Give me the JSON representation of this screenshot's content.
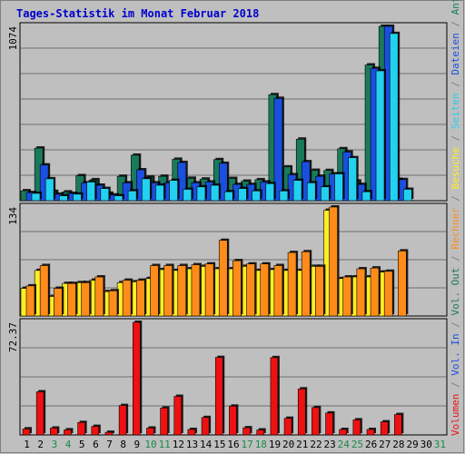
{
  "title": "Tages-Statistik im Monat Februar 2018",
  "colors": {
    "background": "#bfbfbf",
    "frame": "#808080",
    "title": "#0000cc",
    "anfragen": "#1a7a5c",
    "dateien": "#1a4fe0",
    "seiten": "#22d0f0",
    "besuche": "#ffee22",
    "rechner": "#ff8c1a",
    "volumen": "#ee1111",
    "weekend_label": "#1a8a4a"
  },
  "side_labels": [
    {
      "text": "Volumen",
      "color": "#ee1111"
    },
    {
      "text": " / ",
      "color": "#808080"
    },
    {
      "text": "Vol. In",
      "color": "#1a4fe0"
    },
    {
      "text": " / ",
      "color": "#808080"
    },
    {
      "text": "Vol. Out",
      "color": "#1a7a5c"
    },
    {
      "text": " / ",
      "color": "#808080"
    },
    {
      "text": "Rechner",
      "color": "#ff8c1a"
    },
    {
      "text": " / ",
      "color": "#808080"
    },
    {
      "text": "Besuche",
      "color": "#ffee22"
    },
    {
      "text": " / ",
      "color": "#808080"
    },
    {
      "text": "Seiten",
      "color": "#22d0f0"
    },
    {
      "text": " / ",
      "color": "#808080"
    },
    {
      "text": "Dateien",
      "color": "#1a4fe0"
    },
    {
      "text": " / ",
      "color": "#808080"
    },
    {
      "text": "Anfragen",
      "color": "#1a7a5c"
    }
  ],
  "chart_data": [
    {
      "type": "bar",
      "panel": "requests",
      "y_max_label": "1074",
      "ylim": [
        0,
        1074
      ],
      "categories": [
        "1",
        "2",
        "3",
        "4",
        "5",
        "6",
        "7",
        "8",
        "9",
        "10",
        "11",
        "12",
        "13",
        "14",
        "15",
        "16",
        "17",
        "18",
        "19",
        "20",
        "21",
        "22",
        "23",
        "24",
        "25",
        "26",
        "27",
        "28",
        "29",
        "30",
        "31"
      ],
      "weekend_days": [
        "3",
        "4",
        "10",
        "11",
        "17",
        "18",
        "24",
        "25",
        "31"
      ],
      "series": [
        {
          "name": "Anfragen",
          "values": [
            61,
            324,
            57,
            54,
            154,
            129,
            46,
            150,
            280,
            145,
            150,
            255,
            138,
            133,
            253,
            137,
            120,
            129,
            653,
            208,
            379,
            187,
            186,
            320,
            121,
            836,
            1074,
            131,
            0,
            0,
            0
          ]
        },
        {
          "name": "Dateien",
          "values": [
            50,
            220,
            40,
            45,
            110,
            95,
            35,
            110,
            190,
            110,
            110,
            235,
            110,
            115,
            230,
            100,
            100,
            115,
            630,
            160,
            240,
            150,
            165,
            300,
            100,
            815,
            1074,
            130,
            0,
            0,
            0
          ]
        },
        {
          "name": "Seiten",
          "values": [
            45,
            135,
            30,
            40,
            115,
            75,
            30,
            60,
            135,
            95,
            125,
            70,
            85,
            95,
            55,
            75,
            60,
            105,
            60,
            125,
            110,
            85,
            165,
            265,
            55,
            800,
            1030,
            70,
            0,
            0,
            0
          ]
        }
      ]
    },
    {
      "type": "bar",
      "panel": "visits",
      "y_max_label": "134",
      "ylim": [
        0,
        134
      ],
      "categories": [
        "1",
        "2",
        "3",
        "4",
        "5",
        "6",
        "7",
        "8",
        "9",
        "10",
        "11",
        "12",
        "13",
        "14",
        "15",
        "16",
        "17",
        "18",
        "19",
        "20",
        "21",
        "22",
        "23",
        "24",
        "25",
        "26",
        "27",
        "28",
        "29",
        "30",
        "31"
      ],
      "series": [
        {
          "name": "Besuche",
          "values": [
            34,
            56,
            24,
            40,
            41,
            44,
            30,
            41,
            42,
            46,
            57,
            56,
            58,
            61,
            58,
            58,
            61,
            56,
            57,
            56,
            56,
            61,
            130,
            46,
            48,
            48,
            54,
            0,
            0,
            0,
            0
          ]
        },
        {
          "name": "Rechner",
          "values": [
            37,
            62,
            34,
            40,
            41,
            48,
            31,
            44,
            44,
            62,
            62,
            62,
            63,
            64,
            93,
            68,
            64,
            64,
            62,
            78,
            79,
            61,
            134,
            48,
            58,
            59,
            55,
            80,
            0,
            0,
            0
          ]
        }
      ]
    },
    {
      "type": "bar",
      "panel": "volume",
      "y_max_label": "72.37",
      "ylim": [
        0,
        72.37
      ],
      "categories": [
        "1",
        "2",
        "3",
        "4",
        "5",
        "6",
        "7",
        "8",
        "9",
        "10",
        "11",
        "12",
        "13",
        "14",
        "15",
        "16",
        "17",
        "18",
        "19",
        "20",
        "21",
        "22",
        "23",
        "24",
        "25",
        "26",
        "27",
        "28",
        "29",
        "30",
        "31"
      ],
      "series": [
        {
          "name": "Volumen",
          "values": [
            3.9,
            27.7,
            4.4,
            3.3,
            8.0,
            5.5,
            1.7,
            18.9,
            72.37,
            4.4,
            17.3,
            24.8,
            3.5,
            11.2,
            49.8,
            18.5,
            4.6,
            3.2,
            49.7,
            10.7,
            29.6,
            17.6,
            14.1,
            3.5,
            9.7,
            3.5,
            8.4,
            13.1,
            0,
            0,
            0
          ]
        }
      ]
    }
  ]
}
